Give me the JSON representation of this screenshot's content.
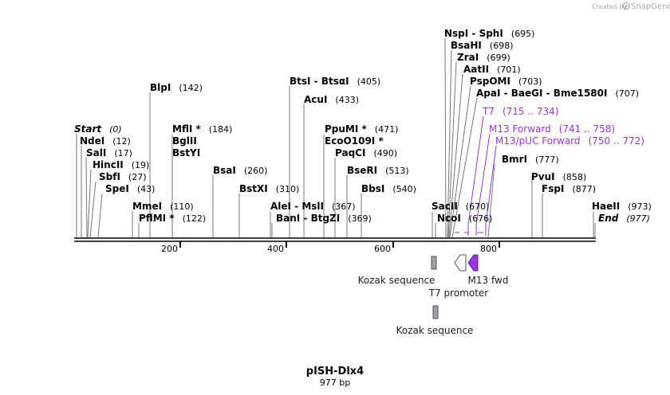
{
  "credit": {
    "prefix": "Created by",
    "brand": "SnapGene"
  },
  "map": {
    "name": "pISH-Dlx4",
    "length_label": "977 bp"
  },
  "ruler": [
    {
      "pos": 200,
      "label": "200"
    },
    {
      "pos": 400,
      "label": "400"
    },
    {
      "pos": 600,
      "label": "600"
    },
    {
      "pos": 800,
      "label": "800"
    }
  ],
  "sites": [
    {
      "name": "Start",
      "pos": 0,
      "pos_label": "(0)",
      "italic": true
    },
    {
      "name": "NdeI",
      "pos": 12,
      "pos_label": "(12)"
    },
    {
      "name": "SalI",
      "pos": 17,
      "pos_label": "(17)"
    },
    {
      "name": "HincII",
      "pos": 19,
      "pos_label": "(19)"
    },
    {
      "name": "SbfI",
      "pos": 27,
      "pos_label": "(27)"
    },
    {
      "name": "SpeI",
      "pos": 43,
      "pos_label": "(43)"
    },
    {
      "name": "MmeI",
      "pos": 110,
      "pos_label": "(110)"
    },
    {
      "name": "PflMI *",
      "pos": 122,
      "pos_label": "(122)"
    },
    {
      "name": "BlpI",
      "pos": 142,
      "pos_label": "(142)"
    },
    {
      "name": "MflI *",
      "pos": 184,
      "pos_label": "(184)"
    },
    {
      "name": "BglII",
      "pos": 184,
      "pos_label": ""
    },
    {
      "name": "BstYI",
      "pos": 184,
      "pos_label": ""
    },
    {
      "name": "BsaI",
      "pos": 260,
      "pos_label": "(260)"
    },
    {
      "name": "BstXI",
      "pos": 310,
      "pos_label": "(310)"
    },
    {
      "name": "AleI - MslI",
      "pos": 367,
      "pos_label": "(367)"
    },
    {
      "name": "BanI - BtgZI",
      "pos": 369,
      "pos_label": "(369)"
    },
    {
      "name": "BtsI - BtsαI",
      "pos": 405,
      "pos_label": "(405)"
    },
    {
      "name": "AcuI",
      "pos": 433,
      "pos_label": "(433)"
    },
    {
      "name": "PpuMI *",
      "pos": 471,
      "pos_label": "(471)"
    },
    {
      "name": "EcoO109I *",
      "pos": 471,
      "pos_label": ""
    },
    {
      "name": "PaqCI",
      "pos": 490,
      "pos_label": "(490)"
    },
    {
      "name": "BseRI",
      "pos": 513,
      "pos_label": "(513)"
    },
    {
      "name": "BbsI",
      "pos": 540,
      "pos_label": "(540)"
    },
    {
      "name": "SacII",
      "pos": 670,
      "pos_label": "(670)"
    },
    {
      "name": "NcoI",
      "pos": 676,
      "pos_label": "(676)"
    },
    {
      "name": "NspI - SphI",
      "pos": 695,
      "pos_label": "(695)"
    },
    {
      "name": "BsaHI",
      "pos": 698,
      "pos_label": "(698)"
    },
    {
      "name": "ZraI",
      "pos": 699,
      "pos_label": "(699)"
    },
    {
      "name": "AatII",
      "pos": 701,
      "pos_label": "(701)"
    },
    {
      "name": "PspOMI",
      "pos": 703,
      "pos_label": "(703)"
    },
    {
      "name": "ApaI - BaeGI - Bme1580I",
      "pos": 707,
      "pos_label": "(707)"
    },
    {
      "name": "BmrI",
      "pos": 777,
      "pos_label": "(777)"
    },
    {
      "name": "PvuI",
      "pos": 858,
      "pos_label": "(858)"
    },
    {
      "name": "FspI",
      "pos": 877,
      "pos_label": "(877)"
    },
    {
      "name": "HaeII",
      "pos": 973,
      "pos_label": "(973)"
    },
    {
      "name": "End",
      "pos": 977,
      "pos_label": "(977)",
      "italic": true
    }
  ],
  "primers": [
    {
      "name": "T7",
      "range": "(715 .. 734)"
    },
    {
      "name": "M13 Forward",
      "range": "(741 .. 758)"
    },
    {
      "name": "M13/pUC Forward",
      "range": "(750 .. 772)"
    }
  ],
  "features": [
    {
      "name": "Kozak sequence",
      "type": "misc",
      "start": 670,
      "end": 676
    },
    {
      "name": "T7 promoter",
      "type": "promoter",
      "start": 714,
      "end": 732
    },
    {
      "name": "M13 fwd",
      "type": "primer_bind",
      "start": 741,
      "end": 758
    },
    {
      "name": "Kozak sequence",
      "type": "misc",
      "start": 670,
      "end": 676
    }
  ],
  "colors": {
    "primer": "#9b34e0",
    "backbone": "#000000",
    "kozak": "#9aa0a8",
    "promoter": "#ffffff",
    "m13": "#9b34e0"
  }
}
